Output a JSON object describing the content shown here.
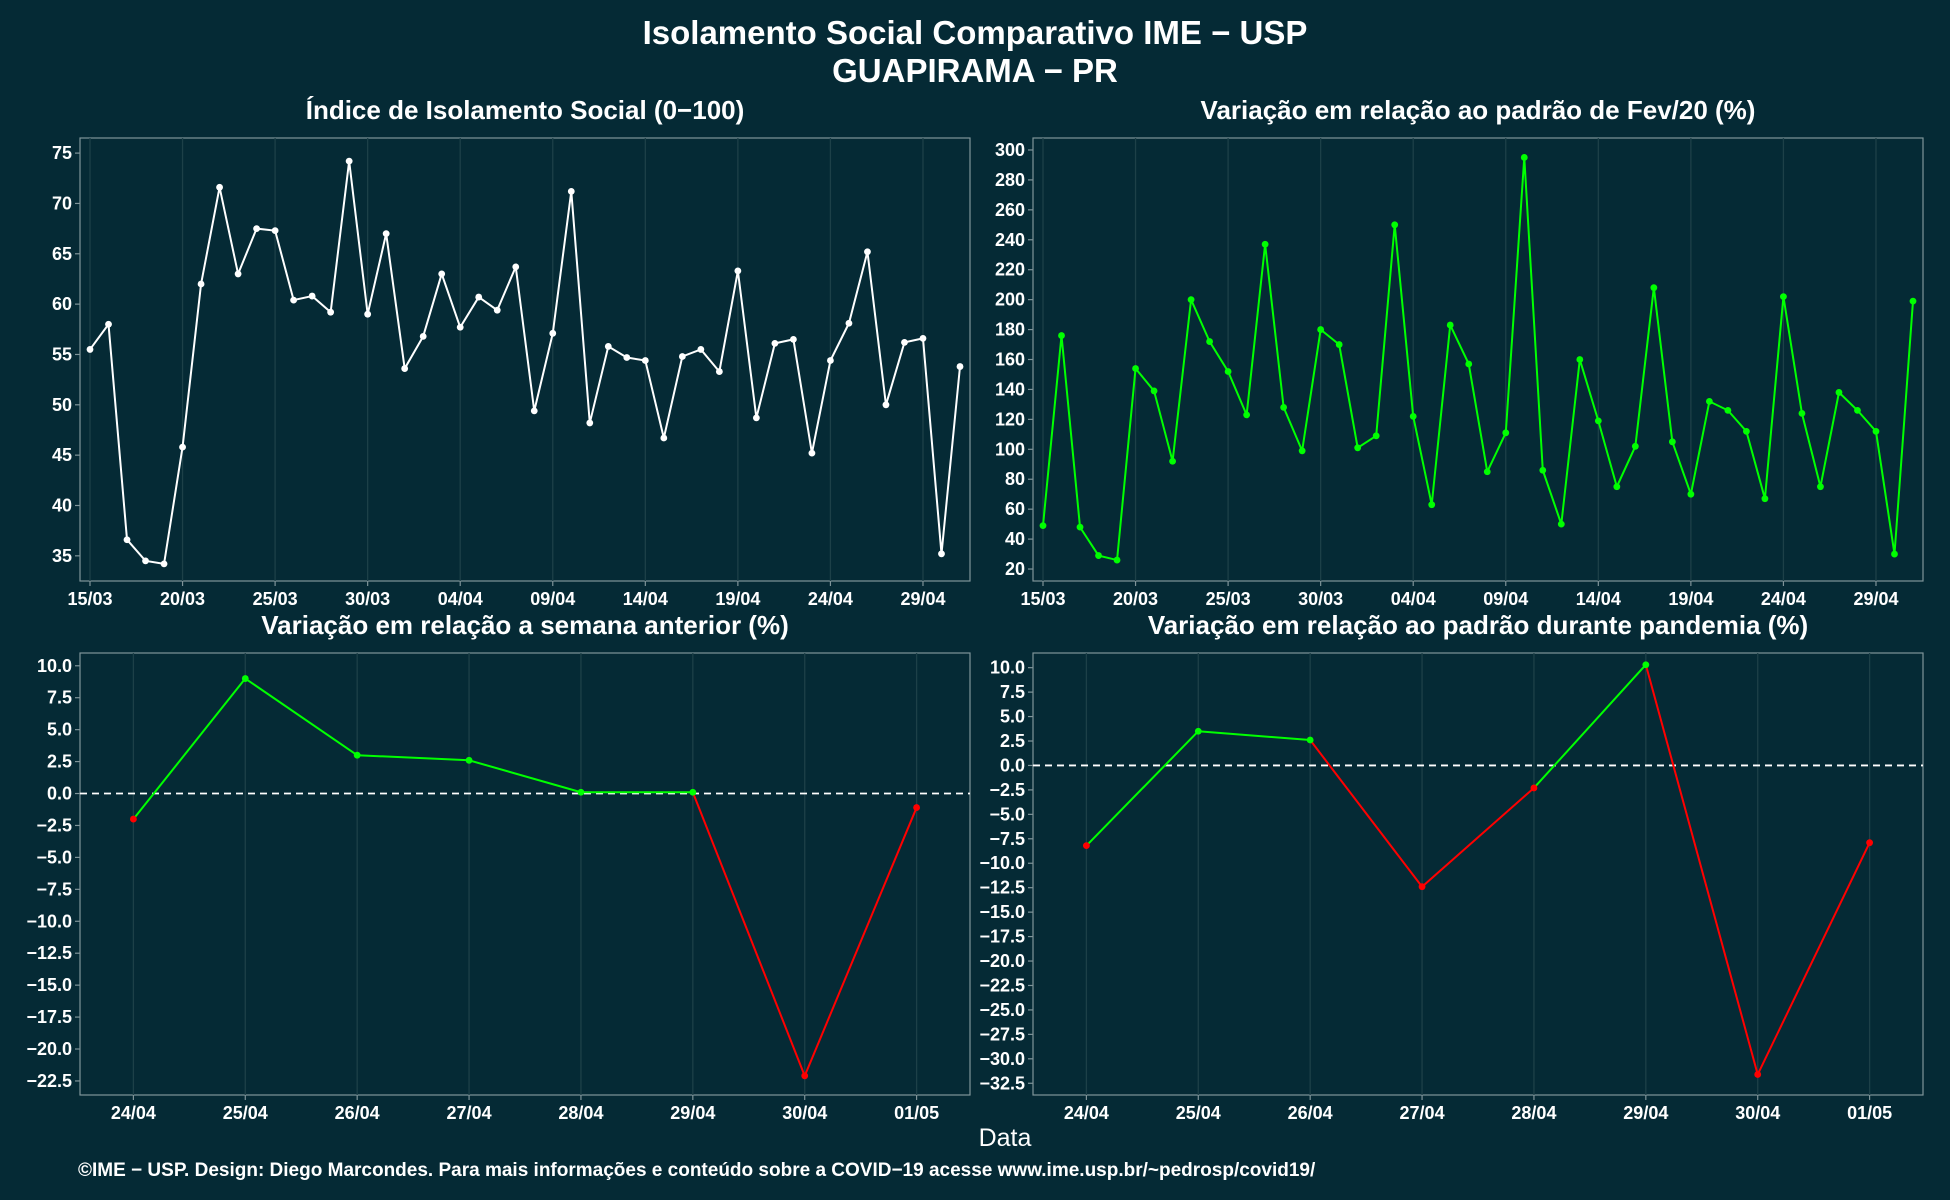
{
  "title": "Isolamento Social Comparativo IME − USP",
  "subtitle": "GUAPIRAMA − PR",
  "x_axis_title": "Data",
  "footer": "©IME − USP. Design: Diego Marcondes. Para mais informações e conteúdo sobre a COVID−19 acesse www.ime.usp.br/~pedrosp/covid19/",
  "colors": {
    "background": "#052a35",
    "white_series": "#ffffff",
    "positive": "#00ff00",
    "negative": "#ff0000",
    "grid": "#1d4048",
    "axis": "#7f9499"
  },
  "chart_data": [
    {
      "type": "line",
      "title": "Índice de Isolamento Social (0−100)",
      "color": "white",
      "x_tick_labels": [
        "15/03",
        "20/03",
        "25/03",
        "30/03",
        "04/04",
        "09/04",
        "14/04",
        "19/04",
        "24/04",
        "29/04"
      ],
      "y_ticks": [
        "35",
        "40",
        "45",
        "50",
        "55",
        "60",
        "65",
        "70",
        "75"
      ],
      "ylim": [
        32.5,
        76.5
      ],
      "x": [
        "15/03",
        "16/03",
        "17/03",
        "18/03",
        "19/03",
        "20/03",
        "21/03",
        "22/03",
        "23/03",
        "24/03",
        "25/03",
        "26/03",
        "27/03",
        "28/03",
        "29/03",
        "30/03",
        "31/03",
        "01/04",
        "02/04",
        "03/04",
        "04/04",
        "05/04",
        "06/04",
        "07/04",
        "08/04",
        "09/04",
        "10/04",
        "11/04",
        "12/04",
        "13/04",
        "14/04",
        "15/04",
        "16/04",
        "17/04",
        "18/04",
        "19/04",
        "20/04",
        "21/04",
        "22/04",
        "23/04",
        "24/04",
        "25/04",
        "26/04",
        "27/04",
        "28/04",
        "29/04",
        "30/04",
        "01/05"
      ],
      "values": [
        55.5,
        58.0,
        36.6,
        34.5,
        34.2,
        45.8,
        62.0,
        71.6,
        63.0,
        67.5,
        67.3,
        60.4,
        60.8,
        59.2,
        74.2,
        59.0,
        67.0,
        53.6,
        56.8,
        63.0,
        57.7,
        60.7,
        59.4,
        63.7,
        49.4,
        57.1,
        71.2,
        48.2,
        55.8,
        54.7,
        54.4,
        46.7,
        54.8,
        55.5,
        53.3,
        63.3,
        48.7,
        56.1,
        56.5,
        45.2,
        54.4,
        58.1,
        65.2,
        50.0,
        56.2,
        56.6,
        35.2,
        53.8
      ]
    },
    {
      "type": "line",
      "title": "Variação em relação ao padrão de Fev/20 (%)",
      "color": "green",
      "x_tick_labels": [
        "15/03",
        "20/03",
        "25/03",
        "30/03",
        "04/04",
        "09/04",
        "14/04",
        "19/04",
        "24/04",
        "29/04"
      ],
      "y_ticks": [
        "20",
        "40",
        "60",
        "80",
        "100",
        "120",
        "140",
        "160",
        "180",
        "200",
        "220",
        "240",
        "260",
        "280",
        "300"
      ],
      "ylim": [
        12,
        308
      ],
      "x": [
        "15/03",
        "16/03",
        "17/03",
        "18/03",
        "19/03",
        "20/03",
        "21/03",
        "22/03",
        "23/03",
        "24/03",
        "25/03",
        "26/03",
        "27/03",
        "28/03",
        "29/03",
        "30/03",
        "31/03",
        "01/04",
        "02/04",
        "03/04",
        "04/04",
        "05/04",
        "06/04",
        "07/04",
        "08/04",
        "09/04",
        "10/04",
        "11/04",
        "12/04",
        "13/04",
        "14/04",
        "15/04",
        "16/04",
        "17/04",
        "18/04",
        "19/04",
        "20/04",
        "21/04",
        "22/04",
        "23/04",
        "24/04",
        "25/04",
        "26/04",
        "27/04",
        "28/04",
        "29/04",
        "30/04",
        "01/05"
      ],
      "values": [
        49,
        176,
        48,
        29,
        26,
        154,
        139,
        92,
        200,
        172,
        152,
        123,
        237,
        128,
        99,
        180,
        170,
        101,
        109,
        250,
        122,
        63,
        183,
        157,
        85,
        111,
        295,
        86,
        50,
        160,
        119,
        75,
        102,
        208,
        105,
        70,
        132,
        126,
        112,
        67,
        202,
        124,
        75,
        138,
        126,
        112,
        30,
        199
      ]
    },
    {
      "type": "line",
      "title": "Variação em relação a semana anterior (%)",
      "colors": "green for positive, red for negative",
      "categories": [
        "24/04",
        "25/04",
        "26/04",
        "27/04",
        "28/04",
        "29/04",
        "30/04",
        "01/05"
      ],
      "y_ticks": [
        "10.0",
        "7.5",
        "5.0",
        "2.5",
        "0.0",
        "−2.5",
        "−5.0",
        "−7.5",
        "−10.0",
        "−12.5",
        "−15.0",
        "−17.5",
        "−20.0",
        "−22.5"
      ],
      "ylim": [
        -23.6,
        11.0
      ],
      "reference_line": 0,
      "values": [
        -2.0,
        9.0,
        3.0,
        2.6,
        0.1,
        0.1,
        -22.1,
        -1.1
      ]
    },
    {
      "type": "line",
      "title": "Variação em relação ao padrão durante pandemia (%)",
      "colors": "green for positive, red for negative",
      "categories": [
        "24/04",
        "25/04",
        "26/04",
        "27/04",
        "28/04",
        "29/04",
        "30/04",
        "01/05"
      ],
      "y_ticks": [
        "10.0",
        "7.5",
        "5.0",
        "2.5",
        "0.0",
        "−2.5",
        "−5.0",
        "−7.5",
        "−10.0",
        "−12.5",
        "−15.0",
        "−17.5",
        "−20.0",
        "−22.5",
        "−25.0",
        "−27.5",
        "−30.0",
        "−32.5"
      ],
      "ylim": [
        -33.7,
        11.5
      ],
      "reference_line": 0,
      "values": [
        -8.2,
        3.5,
        2.6,
        -12.4,
        -2.3,
        10.3,
        -31.6,
        -7.9
      ]
    }
  ]
}
